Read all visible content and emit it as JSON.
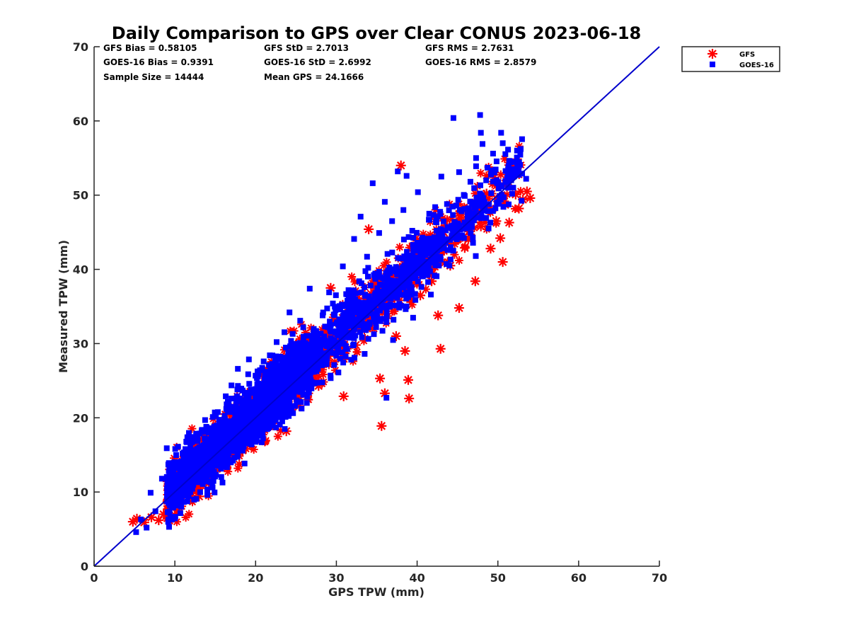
{
  "chart_data": {
    "type": "scatter",
    "title": "Daily Comparison to GPS over Clear CONUS 2023-06-18",
    "xlabel": "GPS TPW (mm)",
    "ylabel": "Measured TPW (mm)",
    "xlim": [
      0,
      70
    ],
    "ylim": [
      0,
      70
    ],
    "xticks": [
      "0",
      "10",
      "20",
      "30",
      "40",
      "50",
      "60",
      "70"
    ],
    "yticks": [
      "0",
      "10",
      "20",
      "30",
      "40",
      "50",
      "60",
      "70"
    ],
    "reference_line": {
      "from": [
        0,
        0
      ],
      "to": [
        70,
        70
      ],
      "color": "#0000cc"
    },
    "legend_position": "outside top-right",
    "stats": [
      {
        "text": "GFS Bias = 0.58105"
      },
      {
        "text": "GFS StD = 2.7013"
      },
      {
        "text": "GFS RMS = 2.7631"
      },
      {
        "text": "GOES-16 Bias = 0.9391"
      },
      {
        "text": "GOES-16 StD = 2.6992"
      },
      {
        "text": "GOES-16 RMS = 2.8579"
      },
      {
        "text": "Sample Size = 14444"
      },
      {
        "text": "Mean GPS = 24.1666"
      }
    ],
    "series": [
      {
        "name": "GFS",
        "marker": "asterisk",
        "color": "#ff0000",
        "bias": 0.58105,
        "std": 2.7013,
        "points": [
          [
            4.8,
            6.0
          ],
          [
            5.3,
            6.4
          ],
          [
            6.2,
            5.9
          ],
          [
            7.1,
            6.6
          ],
          [
            8.0,
            6.2
          ],
          [
            8.6,
            7.0
          ],
          [
            9.2,
            8.1
          ],
          [
            10.1,
            8.4
          ],
          [
            10.6,
            9.6
          ],
          [
            11.4,
            10.8
          ],
          [
            12.2,
            11.3
          ],
          [
            13.0,
            9.4
          ],
          [
            13.5,
            12.0
          ],
          [
            14.2,
            13.5
          ],
          [
            15.1,
            14.8
          ],
          [
            16.0,
            15.2
          ],
          [
            16.8,
            17.1
          ],
          [
            17.7,
            17.5
          ],
          [
            18.4,
            15.6
          ],
          [
            19.2,
            19.0
          ],
          [
            20.1,
            20.6
          ],
          [
            20.8,
            18.3
          ],
          [
            21.5,
            22.0
          ],
          [
            22.3,
            21.2
          ],
          [
            23.1,
            24.5
          ],
          [
            23.8,
            18.2
          ],
          [
            24.6,
            26.0
          ],
          [
            25.4,
            21.6
          ],
          [
            26.3,
            27.2
          ],
          [
            27.0,
            28.8
          ],
          [
            27.8,
            24.3
          ],
          [
            28.6,
            30.9
          ],
          [
            29.3,
            37.5
          ],
          [
            30.1,
            31.0
          ],
          [
            30.9,
            22.9
          ],
          [
            31.6,
            33.5
          ],
          [
            32.4,
            29.8
          ],
          [
            33.2,
            35.2
          ],
          [
            34.0,
            45.4
          ],
          [
            34.8,
            36.0
          ],
          [
            35.4,
            25.3
          ],
          [
            35.6,
            18.9
          ],
          [
            36.0,
            23.3
          ],
          [
            36.8,
            38.6
          ],
          [
            37.4,
            31.0
          ],
          [
            38.0,
            54.0
          ],
          [
            38.5,
            29.0
          ],
          [
            38.9,
            25.1
          ],
          [
            39.0,
            22.6
          ],
          [
            39.6,
            41.0
          ],
          [
            40.4,
            36.5
          ],
          [
            41.1,
            43.0
          ],
          [
            41.8,
            38.4
          ],
          [
            42.6,
            33.8
          ],
          [
            42.9,
            29.3
          ],
          [
            43.3,
            45.0
          ],
          [
            44.1,
            40.5
          ],
          [
            44.8,
            46.2
          ],
          [
            45.2,
            34.8
          ],
          [
            45.9,
            42.9
          ],
          [
            46.6,
            48.0
          ],
          [
            47.2,
            38.4
          ],
          [
            47.9,
            45.8
          ],
          [
            48.6,
            50.2
          ],
          [
            49.1,
            42.8
          ],
          [
            49.8,
            46.5
          ],
          [
            50.3,
            44.2
          ],
          [
            50.6,
            41.0
          ],
          [
            50.9,
            48.7
          ],
          [
            51.4,
            46.3
          ],
          [
            52.2,
            50.1
          ],
          [
            52.6,
            48.2
          ],
          [
            53.1,
            49.4
          ],
          [
            53.6,
            50.5
          ],
          [
            54.0,
            49.6
          ]
        ]
      },
      {
        "name": "GOES-16",
        "marker": "square",
        "color": "#0000ff",
        "bias": 0.9391,
        "std": 2.6992,
        "points": [
          [
            5.2,
            4.6
          ],
          [
            5.8,
            6.3
          ],
          [
            6.5,
            5.2
          ],
          [
            7.0,
            9.9
          ],
          [
            7.6,
            7.4
          ],
          [
            8.4,
            11.8
          ],
          [
            9.0,
            15.9
          ],
          [
            9.6,
            12.6
          ],
          [
            10.4,
            16.1
          ],
          [
            11.0,
            13.0
          ],
          [
            11.8,
            17.3
          ],
          [
            12.6,
            14.4
          ],
          [
            13.3,
            16.2
          ],
          [
            14.0,
            12.6
          ],
          [
            14.7,
            20.1
          ],
          [
            15.5,
            16.8
          ],
          [
            16.3,
            22.9
          ],
          [
            17.0,
            18.8
          ],
          [
            17.8,
            26.6
          ],
          [
            18.6,
            20.2
          ],
          [
            19.4,
            23.8
          ],
          [
            20.2,
            22.3
          ],
          [
            21.0,
            27.6
          ],
          [
            21.8,
            24.4
          ],
          [
            22.6,
            30.2
          ],
          [
            23.4,
            27.1
          ],
          [
            24.2,
            34.2
          ],
          [
            25.0,
            28.6
          ],
          [
            25.9,
            32.2
          ],
          [
            26.7,
            37.4
          ],
          [
            27.5,
            31.7
          ],
          [
            28.3,
            33.8
          ],
          [
            29.1,
            36.9
          ],
          [
            29.9,
            34.5
          ],
          [
            30.8,
            40.4
          ],
          [
            31.5,
            37.2
          ],
          [
            32.2,
            44.1
          ],
          [
            33.0,
            47.1
          ],
          [
            33.8,
            41.7
          ],
          [
            34.5,
            51.6
          ],
          [
            35.3,
            44.9
          ],
          [
            36.0,
            49.1
          ],
          [
            36.2,
            22.7
          ],
          [
            36.9,
            46.5
          ],
          [
            37.6,
            53.2
          ],
          [
            38.3,
            48.0
          ],
          [
            38.7,
            52.6
          ],
          [
            39.4,
            45.2
          ],
          [
            40.1,
            50.4
          ],
          [
            40.8,
            44.0
          ],
          [
            41.5,
            47.5
          ],
          [
            42.3,
            43.6
          ],
          [
            43.0,
            52.5
          ],
          [
            43.7,
            48.8
          ],
          [
            44.5,
            60.4
          ],
          [
            45.2,
            53.1
          ],
          [
            45.9,
            49.9
          ],
          [
            46.6,
            51.8
          ],
          [
            47.3,
            55.0
          ],
          [
            47.8,
            60.8
          ],
          [
            47.9,
            58.4
          ],
          [
            48.1,
            56.9
          ],
          [
            48.7,
            53.7
          ],
          [
            49.4,
            55.6
          ],
          [
            50.1,
            50.9
          ],
          [
            50.4,
            58.4
          ],
          [
            50.6,
            57.0
          ],
          [
            51.2,
            52.3
          ],
          [
            51.9,
            51.0
          ],
          [
            52.5,
            54.4
          ],
          [
            53.0,
            52.9
          ],
          [
            53.5,
            52.2
          ],
          [
            41.7,
            36.6
          ],
          [
            44.0,
            40.5
          ],
          [
            46.9,
            44.3
          ]
        ]
      }
    ]
  }
}
